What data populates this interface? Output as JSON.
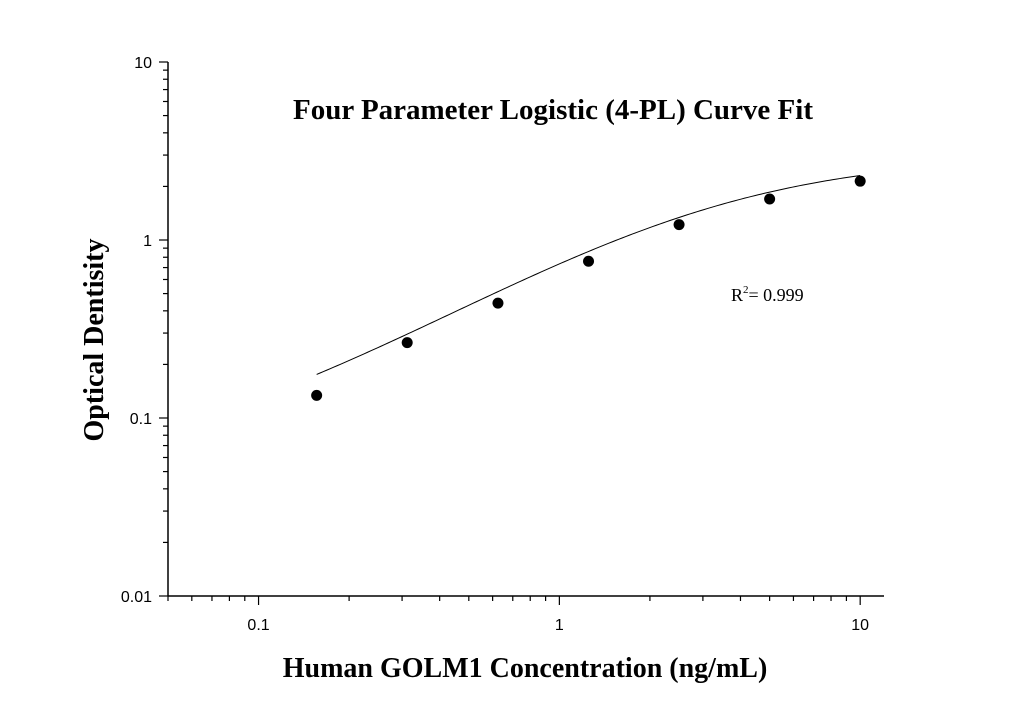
{
  "chart_data": {
    "type": "scatter",
    "title": "Four Parameter Logistic (4-PL) Curve Fit",
    "xlabel": "Human GOLM1 Concentration (ng/mL)",
    "ylabel": "Optical Dentisity",
    "x_scale": "log",
    "y_scale": "log",
    "xlim": [
      0.05,
      12
    ],
    "ylim": [
      0.01,
      10
    ],
    "x_ticks": [
      {
        "value": 0.1,
        "label": "0.1"
      },
      {
        "value": 1,
        "label": "1"
      },
      {
        "value": 10,
        "label": "10"
      }
    ],
    "y_ticks": [
      {
        "value": 0.01,
        "label": "0.01"
      },
      {
        "value": 0.1,
        "label": "0.1"
      },
      {
        "value": 1,
        "label": "1"
      },
      {
        "value": 10,
        "label": "10"
      }
    ],
    "grid": false,
    "series": [
      {
        "x": [
          0.156,
          0.312,
          0.625,
          1.25,
          2.5,
          5,
          10
        ],
        "y": [
          0.134,
          0.265,
          0.442,
          0.76,
          1.22,
          1.7,
          2.14
        ],
        "color": "#000000"
      }
    ],
    "fit": {
      "model": "4PL",
      "a": 0.05,
      "b": 1.03,
      "c": 3.2,
      "d": 3.0,
      "x_range": [
        0.156,
        10
      ]
    },
    "annotation": {
      "base": "R",
      "sup": "2",
      "rest": "= 0.999"
    }
  }
}
